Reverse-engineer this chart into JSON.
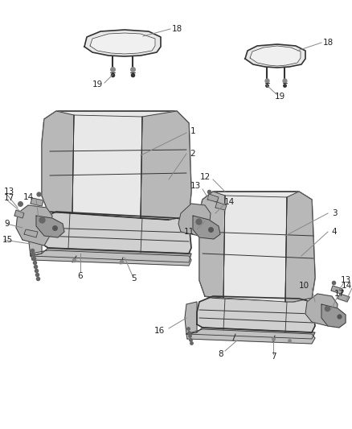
{
  "bg_color": "#ffffff",
  "line_color": "#333333",
  "label_color": "#222222",
  "fc_light": "#e8e8e8",
  "fc_mid": "#d0d0d0",
  "fc_dark": "#b8b8b8",
  "fc_darker": "#a0a0a0",
  "lw_main": 1.2,
  "lw_thin": 0.6,
  "label_fs": 7.5
}
